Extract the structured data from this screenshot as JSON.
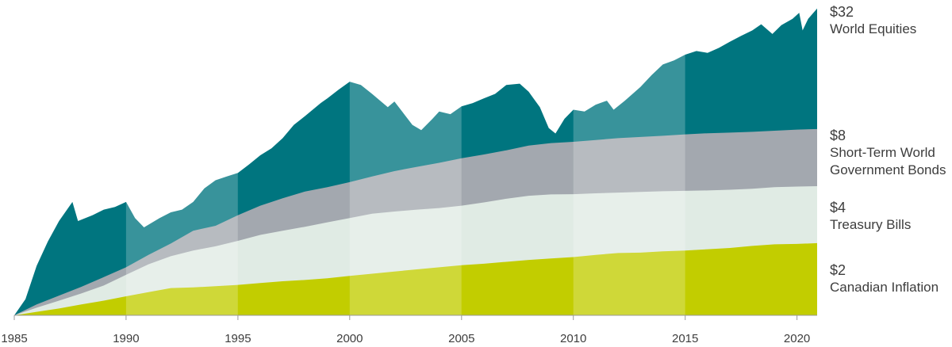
{
  "chart_data": {
    "type": "area",
    "x_start": 1985,
    "x_end": 2020.9,
    "x_ticks": [
      "1985",
      "1990",
      "1995",
      "2000",
      "2005",
      "2010",
      "2015",
      "2020"
    ],
    "scale": "log",
    "ylim": [
      1,
      34
    ],
    "series": [
      {
        "name": "World Equities",
        "end_label": "$32",
        "color": "#00757f",
        "points": [
          [
            1985,
            1.0
          ],
          [
            1985.5,
            1.2
          ],
          [
            1986,
            1.75
          ],
          [
            1986.5,
            2.3
          ],
          [
            1987,
            2.9
          ],
          [
            1987.6,
            3.6
          ],
          [
            1987.85,
            2.9
          ],
          [
            1988.5,
            3.1
          ],
          [
            1989,
            3.3
          ],
          [
            1989.5,
            3.4
          ],
          [
            1990,
            3.6
          ],
          [
            1990.4,
            3.0
          ],
          [
            1990.8,
            2.7
          ],
          [
            1991.5,
            3.0
          ],
          [
            1992,
            3.2
          ],
          [
            1992.5,
            3.3
          ],
          [
            1993,
            3.6
          ],
          [
            1993.5,
            4.2
          ],
          [
            1994,
            4.6
          ],
          [
            1994.5,
            4.8
          ],
          [
            1995,
            5.0
          ],
          [
            1995.5,
            5.5
          ],
          [
            1996,
            6.1
          ],
          [
            1996.5,
            6.6
          ],
          [
            1997,
            7.4
          ],
          [
            1997.5,
            8.6
          ],
          [
            1998,
            9.5
          ],
          [
            1998.7,
            11.0
          ],
          [
            1999,
            11.6
          ],
          [
            1999.5,
            12.8
          ],
          [
            2000,
            14.0
          ],
          [
            2000.5,
            13.5
          ],
          [
            2001,
            12.2
          ],
          [
            2001.7,
            10.5
          ],
          [
            2002,
            11.2
          ],
          [
            2002.8,
            8.6
          ],
          [
            2003.2,
            8.1
          ],
          [
            2003.7,
            9.2
          ],
          [
            2004,
            10.0
          ],
          [
            2004.5,
            9.7
          ],
          [
            2005,
            10.6
          ],
          [
            2005.5,
            11.0
          ],
          [
            2006,
            11.6
          ],
          [
            2006.5,
            12.2
          ],
          [
            2007,
            13.5
          ],
          [
            2007.6,
            13.7
          ],
          [
            2008,
            12.5
          ],
          [
            2008.5,
            10.5
          ],
          [
            2008.9,
            8.3
          ],
          [
            2009.2,
            7.8
          ],
          [
            2009.6,
            9.2
          ],
          [
            2010,
            10.2
          ],
          [
            2010.5,
            10.0
          ],
          [
            2011,
            10.8
          ],
          [
            2011.5,
            11.3
          ],
          [
            2011.8,
            10.2
          ],
          [
            2012.3,
            11.3
          ],
          [
            2013,
            13.2
          ],
          [
            2013.5,
            15.1
          ],
          [
            2014,
            17.0
          ],
          [
            2014.5,
            17.8
          ],
          [
            2015,
            19.0
          ],
          [
            2015.5,
            19.8
          ],
          [
            2016,
            19.4
          ],
          [
            2016.5,
            20.5
          ],
          [
            2017,
            22.0
          ],
          [
            2017.5,
            23.5
          ],
          [
            2018,
            25.0
          ],
          [
            2018.4,
            26.8
          ],
          [
            2018.9,
            24.0
          ],
          [
            2019.3,
            26.5
          ],
          [
            2019.8,
            28.5
          ],
          [
            2020.1,
            30.5
          ],
          [
            2020.25,
            25.0
          ],
          [
            2020.5,
            28.5
          ],
          [
            2020.9,
            32.0
          ]
        ]
      },
      {
        "name": "Short-Term World Government Bonds",
        "end_label": "$8",
        "color": "#a3a8af",
        "points": [
          [
            1985,
            1.0
          ],
          [
            1986,
            1.13
          ],
          [
            1987,
            1.25
          ],
          [
            1988,
            1.38
          ],
          [
            1989,
            1.54
          ],
          [
            1990,
            1.72
          ],
          [
            1991,
            1.98
          ],
          [
            1992,
            2.25
          ],
          [
            1993,
            2.6
          ],
          [
            1994,
            2.75
          ],
          [
            1995,
            3.1
          ],
          [
            1996,
            3.45
          ],
          [
            1997,
            3.75
          ],
          [
            1998,
            4.05
          ],
          [
            1999,
            4.25
          ],
          [
            2000,
            4.5
          ],
          [
            2001,
            4.8
          ],
          [
            2002,
            5.1
          ],
          [
            2003,
            5.35
          ],
          [
            2004,
            5.6
          ],
          [
            2005,
            5.9
          ],
          [
            2006,
            6.15
          ],
          [
            2007,
            6.45
          ],
          [
            2008,
            6.8
          ],
          [
            2009,
            7.0
          ],
          [
            2010,
            7.1
          ],
          [
            2011,
            7.25
          ],
          [
            2012,
            7.4
          ],
          [
            2013,
            7.5
          ],
          [
            2014,
            7.6
          ],
          [
            2015,
            7.72
          ],
          [
            2016,
            7.82
          ],
          [
            2017,
            7.88
          ],
          [
            2018,
            7.95
          ],
          [
            2019,
            8.05
          ],
          [
            2020,
            8.15
          ],
          [
            2020.9,
            8.2
          ]
        ]
      },
      {
        "name": "Treasury Bills",
        "end_label": "$4",
        "color": "#e0ebe4",
        "points": [
          [
            1985,
            1.0
          ],
          [
            1986,
            1.09
          ],
          [
            1987,
            1.18
          ],
          [
            1988,
            1.28
          ],
          [
            1989,
            1.4
          ],
          [
            1990,
            1.58
          ],
          [
            1991,
            1.78
          ],
          [
            1992,
            1.95
          ],
          [
            1993,
            2.08
          ],
          [
            1994,
            2.18
          ],
          [
            1995,
            2.32
          ],
          [
            1996,
            2.48
          ],
          [
            1997,
            2.6
          ],
          [
            1998,
            2.72
          ],
          [
            1999,
            2.86
          ],
          [
            2000,
            3.0
          ],
          [
            2001,
            3.15
          ],
          [
            2002,
            3.23
          ],
          [
            2003,
            3.3
          ],
          [
            2004,
            3.36
          ],
          [
            2005,
            3.45
          ],
          [
            2006,
            3.58
          ],
          [
            2007,
            3.73
          ],
          [
            2008,
            3.86
          ],
          [
            2009,
            3.92
          ],
          [
            2010,
            3.93
          ],
          [
            2011,
            3.97
          ],
          [
            2012,
            4.0
          ],
          [
            2013,
            4.03
          ],
          [
            2014,
            4.06
          ],
          [
            2015,
            4.08
          ],
          [
            2016,
            4.1
          ],
          [
            2017,
            4.13
          ],
          [
            2018,
            4.18
          ],
          [
            2019,
            4.25
          ],
          [
            2020,
            4.28
          ],
          [
            2020.9,
            4.3
          ]
        ]
      },
      {
        "name": "Canadian Inflation",
        "end_label": "$2",
        "color": "#c2cd00",
        "points": [
          [
            1985,
            1.0
          ],
          [
            1986,
            1.04
          ],
          [
            1987,
            1.08
          ],
          [
            1988,
            1.13
          ],
          [
            1989,
            1.18
          ],
          [
            1990,
            1.24
          ],
          [
            1991,
            1.3
          ],
          [
            1992,
            1.36
          ],
          [
            1993,
            1.37
          ],
          [
            1994,
            1.39
          ],
          [
            1995,
            1.41
          ],
          [
            1996,
            1.44
          ],
          [
            1997,
            1.47
          ],
          [
            1998,
            1.49
          ],
          [
            1999,
            1.52
          ],
          [
            2000,
            1.56
          ],
          [
            2001,
            1.6
          ],
          [
            2002,
            1.64
          ],
          [
            2003,
            1.68
          ],
          [
            2004,
            1.72
          ],
          [
            2005,
            1.76
          ],
          [
            2006,
            1.79
          ],
          [
            2007,
            1.83
          ],
          [
            2008,
            1.87
          ],
          [
            2009,
            1.9
          ],
          [
            2010,
            1.93
          ],
          [
            2011,
            1.98
          ],
          [
            2012,
            2.02
          ],
          [
            2013,
            2.03
          ],
          [
            2014,
            2.06
          ],
          [
            2015,
            2.08
          ],
          [
            2016,
            2.11
          ],
          [
            2017,
            2.14
          ],
          [
            2018,
            2.19
          ],
          [
            2019,
            2.23
          ],
          [
            2020,
            2.24
          ],
          [
            2020.9,
            2.26
          ]
        ]
      }
    ],
    "shaded_bands": [
      [
        1990,
        1995
      ],
      [
        2000,
        2005
      ],
      [
        2010,
        2015
      ]
    ]
  },
  "labels": {
    "world_equities": {
      "value": "$32",
      "name": "World Equities"
    },
    "short_term_bonds": {
      "value": "$8",
      "name_line1": "Short-Term World",
      "name_line2": "Government Bonds"
    },
    "treasury_bills": {
      "value": "$4",
      "name": "Treasury Bills"
    },
    "canadian_inflation": {
      "value": "$2",
      "name": "Canadian Inflation"
    }
  }
}
